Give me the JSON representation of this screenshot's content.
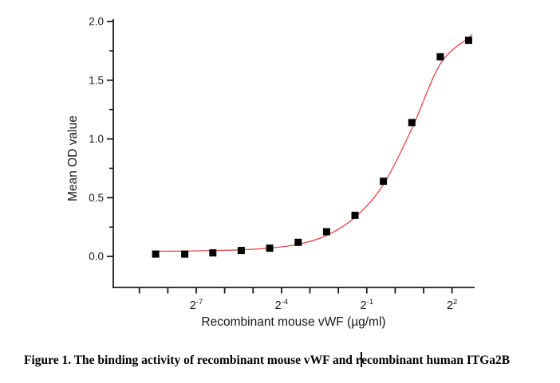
{
  "page": {
    "background": "#ffffff"
  },
  "caption": {
    "part1": "Figure 1. The binding activity of recombinant mouse vWF and r",
    "part2": "ecombinant human ITGa2B"
  },
  "chart_data": {
    "type": "scatter",
    "title": "",
    "xlabel": "Recombinant mouse vWF (µg/ml)",
    "ylabel": "Mean OD value",
    "x_scale": "log2",
    "x_axis_range_log2": [
      -9.89,
      2.8
    ],
    "ylim": [
      -0.26,
      2.0
    ],
    "grid": false,
    "legend": null,
    "x_all_tick_log2": [
      -9,
      -8,
      -7,
      -6,
      -5,
      -4,
      -3,
      -2,
      -1,
      0,
      1,
      2
    ],
    "x_major_tick_labels": [
      {
        "base": "2",
        "exp": "-7",
        "log2": -7
      },
      {
        "base": "2",
        "exp": "-4",
        "log2": -4
      },
      {
        "base": "2",
        "exp": "-1",
        "log2": -1
      },
      {
        "base": "2",
        "exp": "2",
        "log2": 2
      }
    ],
    "y_major_ticks": [
      {
        "label": "0.0",
        "value": 0.0
      },
      {
        "label": "0.5",
        "value": 0.5
      },
      {
        "label": "1.0",
        "value": 1.0
      },
      {
        "label": "1.5",
        "value": 1.5
      },
      {
        "label": "2.0",
        "value": 2.0
      }
    ],
    "y_minor_tick_values": [
      0.25,
      0.75,
      1.25,
      1.75
    ],
    "series": [
      {
        "name": "Mean OD value",
        "marker": "black-square",
        "x_ug_ml": [
          0.0029,
          0.0059,
          0.0117,
          0.0234,
          0.0469,
          0.0938,
          0.1875,
          0.375,
          0.75,
          1.5,
          3.0,
          6.0
        ],
        "y_od": [
          0.02,
          0.02,
          0.03,
          0.05,
          0.07,
          0.12,
          0.21,
          0.35,
          0.64,
          1.14,
          1.7,
          1.84
        ]
      }
    ],
    "fit_curve": {
      "type": "sigmoidal-dose-response",
      "color": "#e64545",
      "points_log2x_od": [
        [
          -8.4,
          0.045
        ],
        [
          -7.4,
          0.045
        ],
        [
          -6.4,
          0.05
        ],
        [
          -5.4,
          0.056
        ],
        [
          -4.4,
          0.071
        ],
        [
          -3.45,
          0.102
        ],
        [
          -2.43,
          0.176
        ],
        [
          -1.42,
          0.332
        ],
        [
          -0.44,
          0.603
        ],
        [
          0.58,
          1.085
        ],
        [
          1.59,
          1.64
        ],
        [
          2.6,
          1.864
        ],
        [
          2.68,
          1.885
        ]
      ]
    },
    "colors": {
      "marker": "#000000",
      "curve": "#e64545",
      "axis": "#1c1c1c"
    }
  }
}
